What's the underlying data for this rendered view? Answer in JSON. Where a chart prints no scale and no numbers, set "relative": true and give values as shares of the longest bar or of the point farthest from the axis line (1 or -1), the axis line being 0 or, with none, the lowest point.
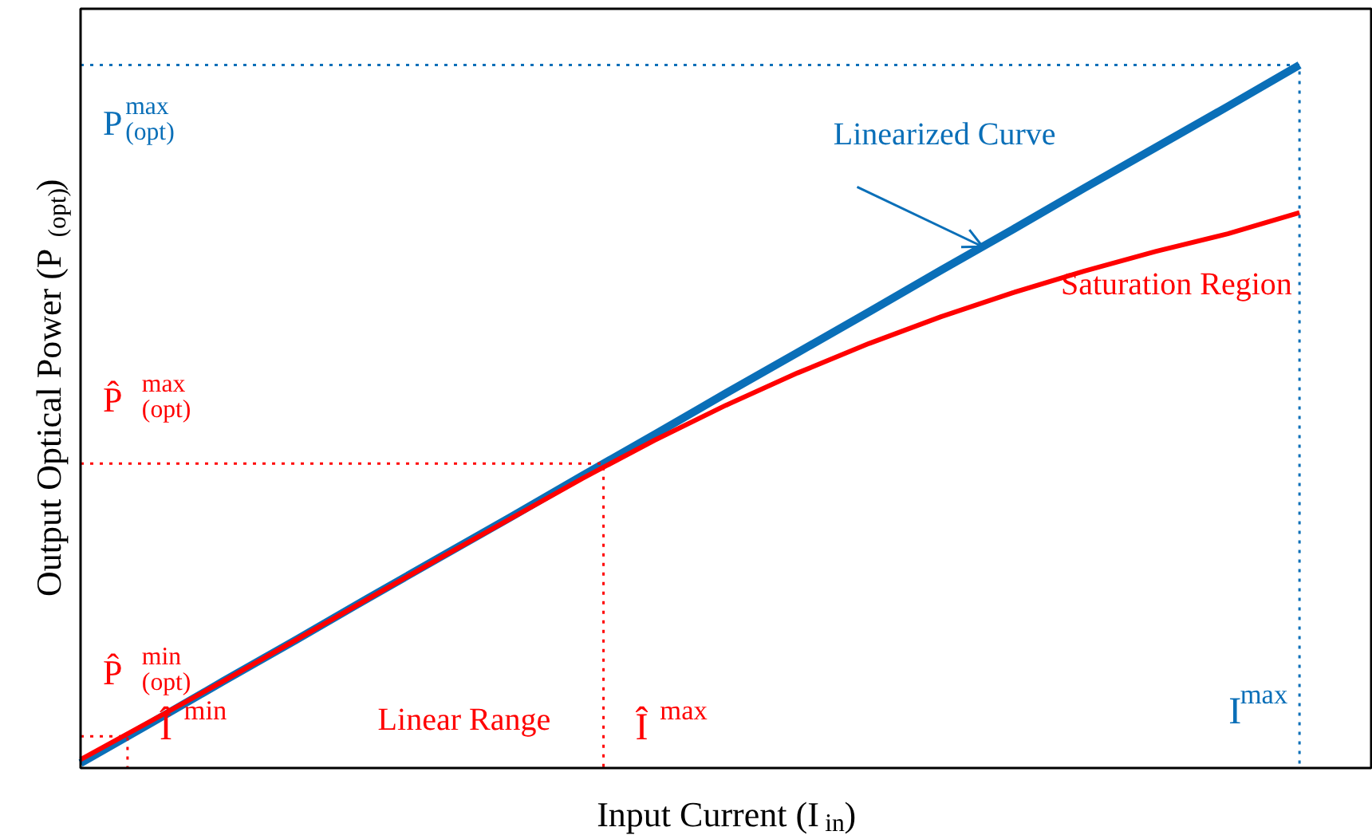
{
  "chart_data": {
    "type": "line",
    "relative": true,
    "xlabel": "Input Current (I$_{in}$)",
    "ylabel": "Output Optical Power (P$_{(opt)}$)",
    "categories": [
      null,
      null,
      null,
      null,
      null,
      null,
      null,
      null,
      null,
      null,
      null,
      null,
      null,
      null,
      null,
      null,
      null,
      null
    ],
    "series": [
      {
        "name": "Linearized Curve",
        "color": "#0a6fb8",
        "values": [
          0.007,
          0.065,
          0.124,
          0.182,
          0.241,
          0.299,
          0.357,
          0.416,
          0.474,
          0.533,
          0.591,
          0.649,
          0.708,
          0.766,
          0.825,
          0.883,
          0.941,
          1.0
        ]
      },
      {
        "name": "Saturation Region",
        "color": "#ff0000",
        "values": [
          0.012,
          0.068,
          0.124,
          0.182,
          0.24,
          0.298,
          0.355,
          0.412,
          0.466,
          0.516,
          0.562,
          0.604,
          0.642,
          0.676,
          0.707,
          0.735,
          0.76,
          0.79
        ]
      }
    ],
    "ref_lines": [
      {
        "axis": "y",
        "value": 1.0,
        "label": "P$^{max}$$_{(opt)}$",
        "color": "#0a6fb8",
        "line_style": "dotted"
      },
      {
        "axis": "y",
        "value": 0.433,
        "label": "P̂$^{max}$$_{(opt)}$",
        "color": "#ff0000",
        "line_style": "dotted"
      },
      {
        "axis": "y",
        "value": 0.045,
        "label": "P̂$^{min}$$_{(opt)}$",
        "color": "#ff0000",
        "line_style": "dotted"
      }
    ],
    "annotations": [
      "I$^{max}$",
      "Î$^{max}$",
      "Î$^{min}$",
      "Linear Range"
    ],
    "grid": false,
    "marker": "none",
    "line_style": "solid"
  }
}
